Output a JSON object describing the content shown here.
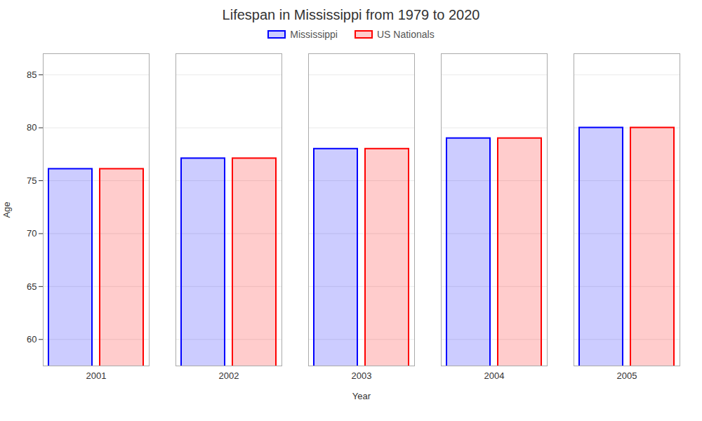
{
  "chart_data": {
    "type": "bar",
    "title": "Lifespan in Mississippi from 1979 to 2020",
    "xlabel": "Year",
    "ylabel": "Age",
    "categories": [
      "2001",
      "2002",
      "2003",
      "2004",
      "2005"
    ],
    "series": [
      {
        "name": "Mississippi",
        "color": "#0000ff",
        "values": [
          76.1,
          77.1,
          78.0,
          79.0,
          80.0
        ]
      },
      {
        "name": "US Nationals",
        "color": "#ff0000",
        "values": [
          76.1,
          77.1,
          78.0,
          79.0,
          80.0
        ]
      }
    ],
    "ylim": [
      57.5,
      87
    ],
    "yticks": [
      60,
      65,
      70,
      75,
      80,
      85
    ],
    "grid": true,
    "legend": "top"
  }
}
